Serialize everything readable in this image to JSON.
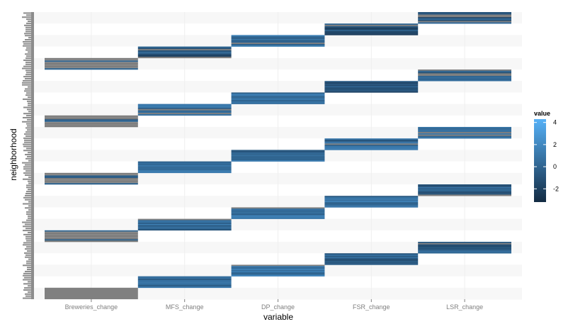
{
  "chart_data": {
    "type": "heatmap",
    "title": "",
    "xlabel": "variable",
    "ylabel": "neighborhood",
    "categories": [
      "Breweries_change",
      "MFS_change",
      "DP_change",
      "FSR_change",
      "LSR_change"
    ],
    "row_groups": 25,
    "colorbar": {
      "title": "value",
      "ticks": [
        4,
        2,
        0,
        -2
      ],
      "range": [
        -3.2,
        4.3
      ],
      "low_color": "#132B43",
      "high_color": "#56B1F7",
      "na_color": "#808080"
    },
    "background_colors": [
      "#F7F7F7",
      "#FFFFFF"
    ],
    "grid": true,
    "legend": "right"
  }
}
